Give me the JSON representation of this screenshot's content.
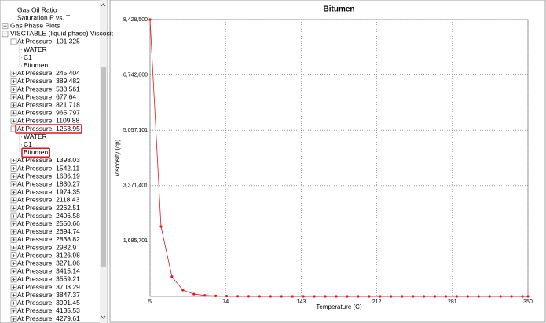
{
  "tree": {
    "partial_items": [
      {
        "label": "Gas Oil Ratio"
      },
      {
        "label": "Saturation P vs. T"
      }
    ],
    "items": [
      {
        "label": "Gas Phase Plots",
        "expanded": false
      },
      {
        "label": "VISCTABLE (liquid phase) Viscosit",
        "expanded": true,
        "children": [
          {
            "label": "At Pressure: 101.325",
            "expanded": true,
            "children": [
              {
                "label": "WATER"
              },
              {
                "label": "C1"
              },
              {
                "label": "Bitumen"
              }
            ]
          },
          {
            "label": "At Pressure: 245.404",
            "expanded": false
          },
          {
            "label": "At Pressure: 389.482",
            "expanded": false
          },
          {
            "label": "At Pressure: 533.561",
            "expanded": false
          },
          {
            "label": "At Pressure: 677.64",
            "expanded": false
          },
          {
            "label": "At Pressure: 821.718",
            "expanded": false
          },
          {
            "label": "At Pressure: 965.797",
            "expanded": false
          },
          {
            "label": "At Pressure: 1109.88",
            "expanded": false
          },
          {
            "label": "At Pressure: 1253.95",
            "expanded": true,
            "highlighted": true,
            "children": [
              {
                "label": "WATER"
              },
              {
                "label": "C1"
              },
              {
                "label": "Bitumen",
                "highlighted": true
              }
            ]
          },
          {
            "label": "At Pressure: 1398.03",
            "expanded": false
          },
          {
            "label": "At Pressure: 1542.11",
            "expanded": false
          },
          {
            "label": "At Pressure: 1686.19",
            "expanded": false
          },
          {
            "label": "At Pressure: 1830.27",
            "expanded": false
          },
          {
            "label": "At Pressure: 1974.35",
            "expanded": false
          },
          {
            "label": "At Pressure: 2118.43",
            "expanded": false
          },
          {
            "label": "At Pressure: 2262.51",
            "expanded": false
          },
          {
            "label": "At Pressure: 2406.58",
            "expanded": false
          },
          {
            "label": "At Pressure: 2550.66",
            "expanded": false
          },
          {
            "label": "At Pressure: 2694.74",
            "expanded": false
          },
          {
            "label": "At Pressure: 2838.82",
            "expanded": false
          },
          {
            "label": "At Pressure: 2982.9",
            "expanded": false
          },
          {
            "label": "At Pressure: 3126.98",
            "expanded": false
          },
          {
            "label": "At Pressure: 3271.06",
            "expanded": false
          },
          {
            "label": "At Pressure: 3415.14",
            "expanded": false
          },
          {
            "label": "At Pressure: 3559.21",
            "expanded": false
          },
          {
            "label": "At Pressure: 3703.29",
            "expanded": false
          },
          {
            "label": "At Pressure: 3847.37",
            "expanded": false
          },
          {
            "label": "At Pressure: 3991.45",
            "expanded": false
          },
          {
            "label": "At Pressure: 4135.53",
            "expanded": false
          },
          {
            "label": "At Pressure: 4279.61",
            "expanded": false
          }
        ]
      }
    ]
  },
  "chart_data": {
    "type": "line",
    "title": "Bitumen",
    "x_label": "Temperature (C)",
    "y_label": "Viscosity (cp)",
    "x": [
      5,
      15,
      25,
      35,
      45,
      55,
      65,
      75,
      85,
      95,
      105,
      115,
      125,
      135,
      145,
      155,
      165,
      175,
      185,
      195,
      205,
      215,
      225,
      235,
      245,
      255,
      265,
      275,
      285,
      295,
      305,
      315,
      325,
      335,
      345,
      350
    ],
    "series": [
      {
        "name": "Bitumen",
        "color": "#e8141e",
        "values": [
          8428500,
          2125000,
          600000,
          190000,
          70000,
          30000,
          15000,
          8000,
          4500,
          2800,
          1800,
          1200,
          850,
          600,
          450,
          340,
          260,
          200,
          160,
          130,
          105,
          85,
          70,
          58,
          48,
          40,
          34,
          29,
          25,
          21,
          18,
          16,
          14,
          12,
          10.5,
          9.5
        ]
      }
    ],
    "xlim": [
      5,
      350
    ],
    "xticks": [
      5,
      74,
      143,
      212,
      281,
      350
    ],
    "ylim": [
      0,
      8428500
    ],
    "yticks": [
      {
        "value": 1685701,
        "label": "1,685,701"
      },
      {
        "value": 3371401,
        "label": "3,371,401"
      },
      {
        "value": 5057101,
        "label": "5,057,101"
      },
      {
        "value": 6742800,
        "label": "6,742,800"
      },
      {
        "value": 8428500,
        "label": "8,428,500"
      }
    ],
    "grid": true
  }
}
